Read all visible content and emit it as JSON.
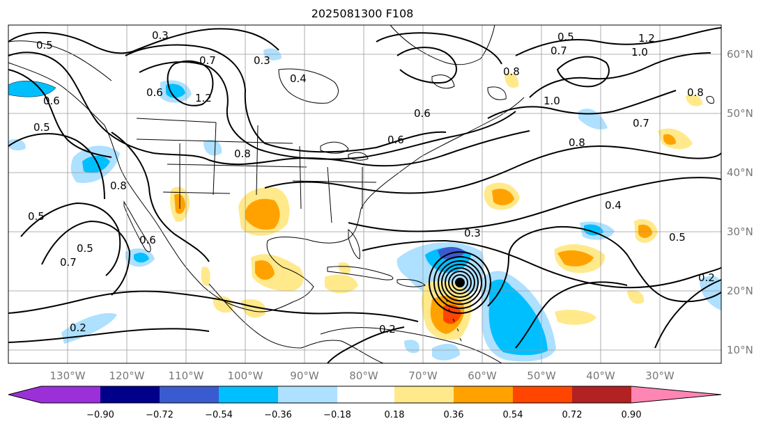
{
  "title": "2025081300 F108",
  "lon_labels": [
    "130°W",
    "120°W",
    "110°W",
    "100°W",
    "90°W",
    "80°W",
    "70°W",
    "60°W",
    "50°W",
    "40°W",
    "30°W"
  ],
  "lat_labels": [
    "60°N",
    "50°N",
    "40°N",
    "30°N",
    "20°N",
    "10°N"
  ],
  "colorbar": {
    "colors": [
      "#9b30d9",
      "#00008b",
      "#3a5bd0",
      "#00bfff",
      "#aee0ff",
      "#ffffff",
      "#ffe98a",
      "#ffa200",
      "#ff4500",
      "#b22222",
      "#ff86b4"
    ],
    "ticks": [
      "−0.90",
      "−0.72",
      "−0.54",
      "−0.36",
      "−0.18",
      "0.18",
      "0.36",
      "0.54",
      "0.72",
      "0.90"
    ]
  },
  "contour_labels": [
    "0.3",
    "0.5",
    "0.7",
    "0.5",
    "0.3",
    "1.2",
    "0.6",
    "0.5",
    "0.4",
    "0.6",
    "0.8",
    "1.0",
    "1.2",
    "0.8",
    "0.7",
    "0.5",
    "1.0",
    "0.6",
    "0.8",
    "0.7",
    "0.8",
    "0.6",
    "0.5",
    "0.6",
    "0.7",
    "0.4",
    "0.3",
    "0.5",
    "0.2",
    "0.2",
    "0.2",
    "0.8"
  ]
}
